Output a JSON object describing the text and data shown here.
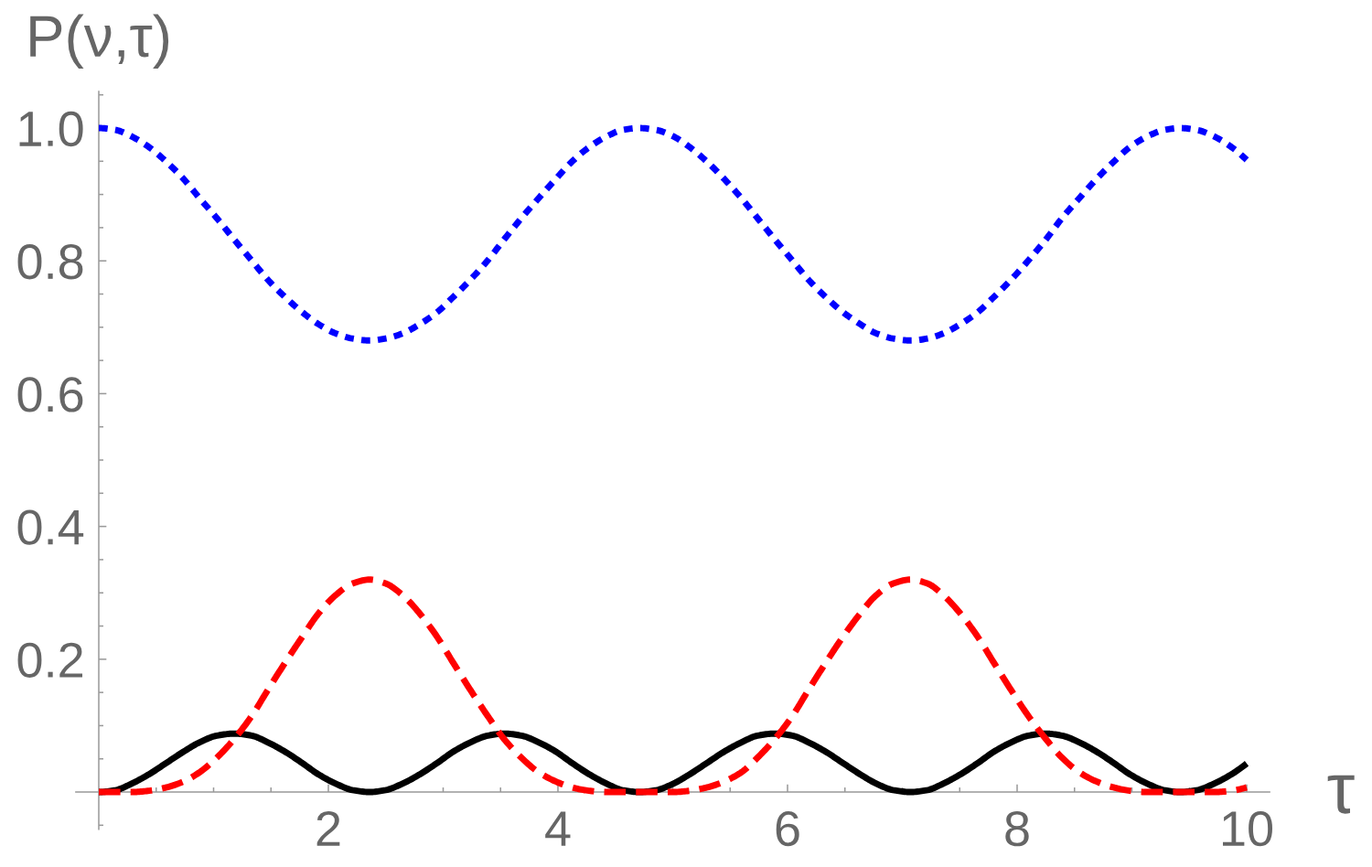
{
  "chart_data": {
    "type": "line",
    "xlabel": "τ",
    "ylabel": "P(ν,τ)",
    "x": [
      0,
      0.15,
      0.29,
      0.44,
      0.59,
      0.74,
      0.88,
      1.03,
      1.18,
      1.33,
      1.47,
      1.62,
      1.77,
      1.91,
      2.06,
      2.21,
      2.36,
      2.5,
      2.65,
      2.8,
      2.95,
      3.09,
      3.24,
      3.39,
      3.53,
      3.68,
      3.83,
      3.98,
      4.12,
      4.27,
      4.42,
      4.56,
      4.71,
      4.86,
      5.01,
      5.15,
      5.3,
      5.45,
      5.6,
      5.74,
      5.89,
      6.04,
      6.18,
      6.33,
      6.48,
      6.63,
      6.77,
      6.92,
      7.07,
      7.22,
      7.36,
      7.51,
      7.66,
      7.8,
      7.95,
      8.1,
      8.25,
      8.39,
      8.54,
      8.69,
      8.84,
      8.98,
      9.13,
      9.28,
      9.42,
      9.57,
      9.72,
      9.87,
      10
    ],
    "xlim": [
      -0.2,
      10.2
    ],
    "ylim": [
      -0.056,
      1.055
    ],
    "xticks": [
      {
        "value": 0.5,
        "label": null
      },
      {
        "value": 1,
        "label": null
      },
      {
        "value": 1.5,
        "label": null
      },
      2,
      {
        "value": 2.5,
        "label": null
      },
      {
        "value": 3,
        "label": null
      },
      {
        "value": 3.5,
        "label": null
      },
      4,
      {
        "value": 4.5,
        "label": null
      },
      {
        "value": 5,
        "label": null
      },
      {
        "value": 5.5,
        "label": null
      },
      6,
      {
        "value": 6.5,
        "label": null
      },
      {
        "value": 7,
        "label": null
      },
      {
        "value": 7.5,
        "label": null
      },
      8,
      {
        "value": 8.5,
        "label": null
      },
      {
        "value": 9,
        "label": null
      },
      {
        "value": 9.5,
        "label": null
      },
      10
    ],
    "yticks": [
      {
        "value": -0.05,
        "label": null
      },
      {
        "value": 0.05,
        "label": null
      },
      {
        "value": 0.1,
        "label": null
      },
      {
        "value": 0.15,
        "label": null
      },
      0.2,
      {
        "value": 0.25,
        "label": null
      },
      {
        "value": 0.3,
        "label": null
      },
      {
        "value": 0.35,
        "label": null
      },
      0.4,
      {
        "value": 0.45,
        "label": null
      },
      {
        "value": 0.5,
        "label": null
      },
      {
        "value": 0.55,
        "label": null
      },
      0.6,
      {
        "value": 0.65,
        "label": null
      },
      {
        "value": 0.7,
        "label": null
      },
      {
        "value": 0.75,
        "label": null
      },
      0.8,
      {
        "value": 0.85,
        "label": null
      },
      {
        "value": 0.9,
        "label": null
      },
      {
        "value": 0.95,
        "label": null
      },
      {
        "value": 1,
        "label": "1.0"
      },
      {
        "value": 1.05,
        "label": null
      }
    ],
    "series": [
      {
        "color": "#0000ff",
        "line_style": "dotted",
        "values": [
          1.0,
          0.997,
          0.987,
          0.971,
          0.949,
          0.923,
          0.894,
          0.864,
          0.832,
          0.801,
          0.772,
          0.746,
          0.723,
          0.705,
          0.691,
          0.683,
          0.68,
          0.683,
          0.691,
          0.705,
          0.723,
          0.746,
          0.772,
          0.801,
          0.832,
          0.864,
          0.894,
          0.923,
          0.949,
          0.971,
          0.987,
          0.997,
          1.0,
          0.997,
          0.987,
          0.971,
          0.949,
          0.923,
          0.894,
          0.864,
          0.832,
          0.801,
          0.772,
          0.746,
          0.723,
          0.705,
          0.691,
          0.683,
          0.68,
          0.683,
          0.691,
          0.705,
          0.723,
          0.746,
          0.772,
          0.801,
          0.832,
          0.864,
          0.894,
          0.923,
          0.949,
          0.971,
          0.987,
          0.997,
          1.0,
          0.997,
          0.987,
          0.971,
          0.952
        ]
      },
      {
        "color": "#000000",
        "line_style": "solid",
        "values": [
          0,
          0.003,
          0.013,
          0.027,
          0.044,
          0.061,
          0.075,
          0.085,
          0.088,
          0.085,
          0.075,
          0.061,
          0.044,
          0.027,
          0.013,
          0.003,
          0,
          0.003,
          0.013,
          0.027,
          0.044,
          0.061,
          0.075,
          0.085,
          0.088,
          0.085,
          0.075,
          0.061,
          0.044,
          0.027,
          0.013,
          0.003,
          0,
          0.003,
          0.013,
          0.027,
          0.044,
          0.061,
          0.075,
          0.085,
          0.088,
          0.085,
          0.075,
          0.061,
          0.044,
          0.027,
          0.013,
          0.003,
          0,
          0.003,
          0.013,
          0.027,
          0.044,
          0.061,
          0.075,
          0.085,
          0.088,
          0.085,
          0.075,
          0.061,
          0.044,
          0.027,
          0.013,
          0.003,
          0,
          0.003,
          0.013,
          0.027,
          0.043
        ]
      },
      {
        "color": "#ff0000",
        "line_style": "dashed",
        "values": [
          0,
          0,
          0,
          0.002,
          0.007,
          0.016,
          0.03,
          0.052,
          0.08,
          0.114,
          0.153,
          0.194,
          0.233,
          0.268,
          0.296,
          0.314,
          0.32,
          0.314,
          0.296,
          0.268,
          0.233,
          0.194,
          0.153,
          0.114,
          0.08,
          0.052,
          0.03,
          0.016,
          0.007,
          0.002,
          0,
          0,
          0,
          0,
          0,
          0.002,
          0.007,
          0.016,
          0.03,
          0.052,
          0.08,
          0.114,
          0.153,
          0.194,
          0.233,
          0.268,
          0.296,
          0.314,
          0.32,
          0.314,
          0.296,
          0.268,
          0.233,
          0.194,
          0.153,
          0.114,
          0.08,
          0.052,
          0.03,
          0.016,
          0.007,
          0.002,
          0,
          0,
          0,
          0,
          0,
          0.002,
          0.007
        ]
      }
    ]
  }
}
